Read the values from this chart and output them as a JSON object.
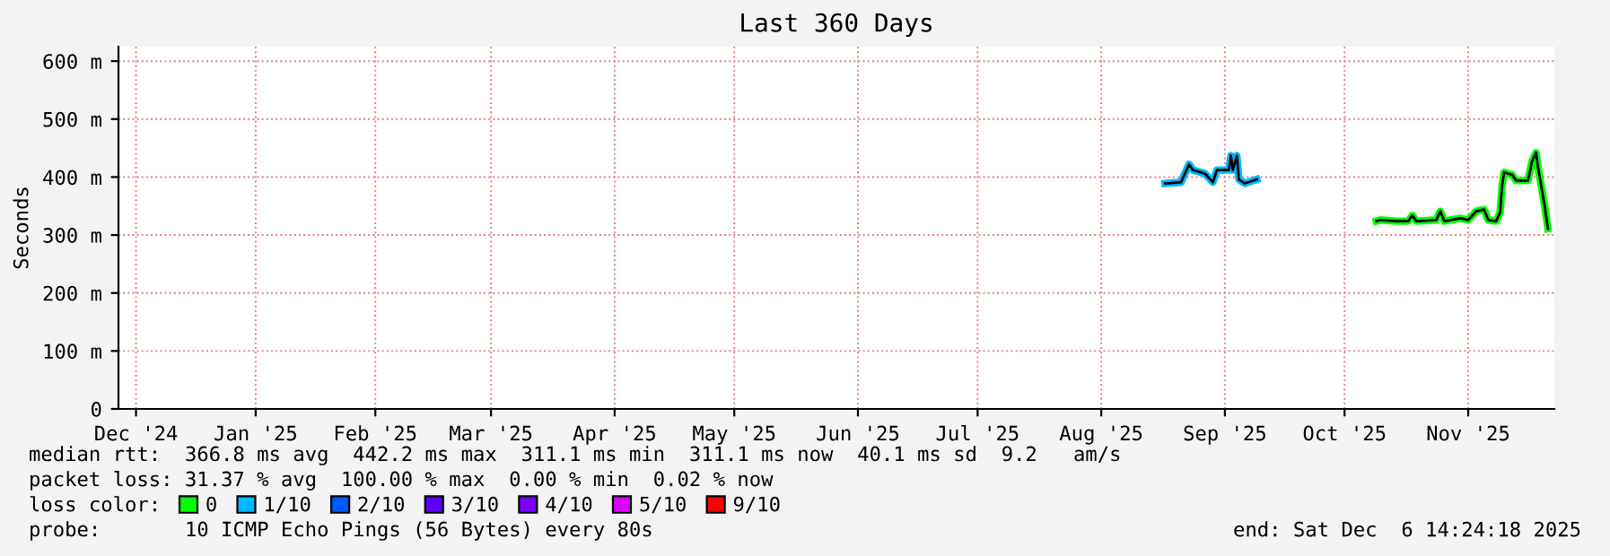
{
  "chart_data": {
    "type": "line",
    "title": "Last 360 Days",
    "ylabel": "Seconds",
    "xlim": [
      "2024-12-11T14:24",
      "2025-12-06T14:24"
    ],
    "xticks": [
      {
        "value": "2024-12-16",
        "label": "Dec '24"
      },
      {
        "value": "2025-01-15",
        "label": "Jan '25"
      },
      {
        "value": "2025-02-14",
        "label": "Feb '25"
      },
      {
        "value": "2025-03-15",
        "label": "Mar '25"
      },
      {
        "value": "2025-04-15",
        "label": "Apr '25"
      },
      {
        "value": "2025-05-15",
        "label": "May '25"
      },
      {
        "value": "2025-06-15",
        "label": "Jun '25"
      },
      {
        "value": "2025-07-15",
        "label": "Jul '25"
      },
      {
        "value": "2025-08-15",
        "label": "Aug '25"
      },
      {
        "value": "2025-09-15",
        "label": "Sep '25"
      },
      {
        "value": "2025-10-15",
        "label": "Oct '25"
      },
      {
        "value": "2025-11-15",
        "label": "Nov '25"
      }
    ],
    "ylim": [
      0,
      625
    ],
    "yticks": [
      0,
      {
        "value": 100,
        "label": "100 m"
      },
      {
        "value": 200,
        "label": "200 m"
      },
      {
        "value": 300,
        "label": "300 m"
      },
      {
        "value": 400,
        "label": "400 m"
      },
      {
        "value": 500,
        "label": "500 m"
      },
      {
        "value": 600,
        "label": "600 m"
      }
    ],
    "grid": true,
    "legend": "bottom",
    "legend_title": "loss color:",
    "marker": "none",
    "line_style": "solid",
    "series": [
      {
        "name": "0",
        "color": "#00ff00",
        "x": [
          "2025-10-23",
          "2025-10-24",
          "2025-10-28",
          "2025-10-31",
          "2025-11-01",
          "2025-11-02",
          "2025-11-07",
          "2025-11-08",
          "2025-11-09",
          "2025-11-13",
          "2025-11-15",
          "2025-11-17",
          "2025-11-19",
          "2025-11-20",
          "2025-11-22",
          "2025-11-23",
          "2025-11-23T12:00",
          "2025-11-24",
          "2025-11-26",
          "2025-11-27",
          "2025-11-30",
          "2025-12-01",
          "2025-12-02",
          "2025-12-02T12:00",
          "2025-12-04",
          "2025-12-05"
        ],
        "values": [
          324,
          326,
          324,
          324,
          334,
          324,
          326,
          341,
          324,
          329,
          326,
          341,
          344,
          326,
          324,
          339,
          386,
          408,
          404,
          394,
          394,
          427,
          442,
          417,
          357,
          311
        ]
      },
      {
        "name": "1/10",
        "color": "#00b8ff",
        "x": [
          "2025-08-31",
          "2025-09-04",
          "2025-09-06",
          "2025-09-07",
          "2025-09-10",
          "2025-09-12",
          "2025-09-13",
          "2025-09-16",
          "2025-09-16T12:00",
          "2025-09-17",
          "2025-09-18",
          "2025-09-18T12:00",
          "2025-09-20",
          "2025-09-23"
        ],
        "values": [
          389,
          391,
          422,
          412,
          406,
          391,
          412,
          412,
          437,
          412,
          437,
          396,
          389,
          396
        ]
      },
      {
        "name": "2/10",
        "color": "#0059ff"
      },
      {
        "name": "3/10",
        "color": "#5e00ff"
      },
      {
        "name": "4/10",
        "color": "#7e00ff"
      },
      {
        "name": "5/10",
        "color": "#dd00ff"
      },
      {
        "name": "9/10",
        "color": "#ff0000"
      },
      {
        "color": "#000000",
        "x": [
          "2025-08-31",
          "2025-09-04",
          "2025-09-06",
          "2025-09-07",
          "2025-09-10",
          "2025-09-12",
          "2025-09-13",
          "2025-09-16",
          "2025-09-16T12:00",
          "2025-09-17",
          "2025-09-18",
          "2025-09-18T12:00",
          "2025-09-20",
          "2025-09-23",
          null,
          "2025-10-23",
          "2025-10-24",
          "2025-10-28",
          "2025-10-31",
          "2025-11-01",
          "2025-11-02",
          "2025-11-07",
          "2025-11-08",
          "2025-11-09",
          "2025-11-13",
          "2025-11-15",
          "2025-11-17",
          "2025-11-19",
          "2025-11-20",
          "2025-11-22",
          "2025-11-23",
          "2025-11-23T12:00",
          "2025-11-24",
          "2025-11-26",
          "2025-11-27",
          "2025-11-30",
          "2025-12-01",
          "2025-12-02",
          "2025-12-02T12:00",
          "2025-12-04",
          "2025-12-05"
        ],
        "values": [
          389,
          391,
          422,
          412,
          406,
          391,
          412,
          412,
          437,
          412,
          437,
          396,
          389,
          396,
          null,
          324,
          326,
          324,
          324,
          334,
          324,
          326,
          341,
          324,
          329,
          326,
          341,
          344,
          326,
          324,
          339,
          386,
          408,
          404,
          394,
          394,
          427,
          442,
          417,
          357,
          311
        ]
      }
    ],
    "annotations": [
      "median rtt:  366.8 ms avg  442.2 ms max  311.1 ms min  311.1 ms now  40.1 ms sd  9.2   am/s",
      "packet loss: 31.37 % avg  100.00 % max  0.00 % min  0.02 % now",
      "probe:       10 ICMP Echo Pings (56 Bytes) every 80s",
      "end: Sat Dec  6 14:24:18 2025"
    ]
  }
}
